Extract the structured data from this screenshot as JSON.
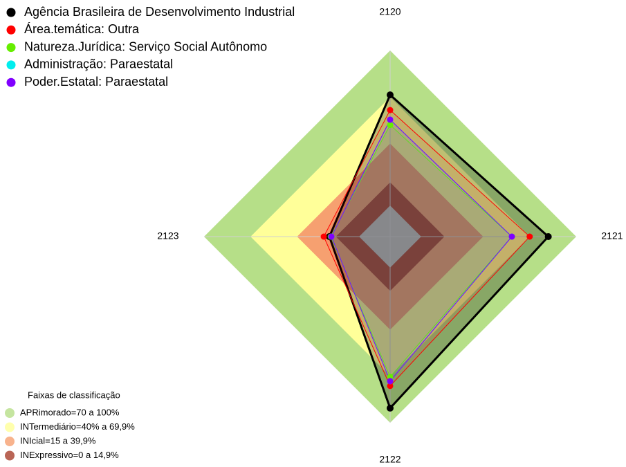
{
  "chart_data": {
    "type": "radar",
    "axes": [
      "2120",
      "2121",
      "2122",
      "2123"
    ],
    "rlim": [
      -20,
      100
    ],
    "series": [
      {
        "name": "Agência Brasileira de Desenvolvimento Industrial",
        "color": "#000000",
        "values": [
          71.4,
          82,
          90.6,
          19.2
        ]
      },
      {
        "name": "Área.temática: Outra",
        "color": "#ff0000",
        "values": [
          61.6,
          70,
          76.3,
          22.8
        ]
      },
      {
        "name": "Natureza.Jurídica: Serviço Social Autônomo",
        "color": "#66ee00",
        "values": [
          52,
          58.5,
          70.5,
          18.3
        ]
      },
      {
        "name": "Administração: Paraestatal",
        "color": "#00eeee",
        "values": [
          55.4,
          58.5,
          73.2,
          17.9
        ]
      },
      {
        "name": "Poder.Estatal: Paraestatal",
        "color": "#8000ff",
        "values": [
          55.4,
          58.5,
          73.2,
          17.9
        ]
      }
    ],
    "bands_title": "Faixas de classificação",
    "bands": [
      {
        "label": "APRimorado=70 a 100%",
        "min": 70,
        "max": 100,
        "color": "#b6df88"
      },
      {
        "label": "INTermediário=40% a 69,9%",
        "min": 40,
        "max": 69.9,
        "color": "#ffff99"
      },
      {
        "label": "INIcial=15 a 39,9%",
        "min": 15,
        "max": 39.9,
        "color": "#f6a070"
      },
      {
        "label": "INExpressivo=0 a 14,9%",
        "min": 0,
        "max": 14.9,
        "color": "#a83e2c"
      }
    ],
    "center_color": "#c0c0c0"
  }
}
